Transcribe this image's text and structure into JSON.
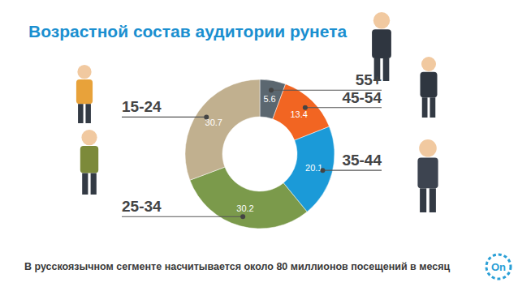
{
  "chart_data": {
    "type": "donut",
    "title": "Возрастной состав аудитории рунета",
    "categories": [
      "55+",
      "45-54",
      "35-44",
      "25-34",
      "15-24"
    ],
    "values": [
      5.6,
      13.4,
      20.1,
      30.2,
      30.7
    ],
    "colors": [
      "#5b6770",
      "#f26522",
      "#1b9ad8",
      "#7b9a4b",
      "#c1b08f"
    ],
    "data_labels": true,
    "footnote": "В русскоязычном сегменте насчитывается около 80 миллионов посещений в месяц",
    "logo": "On"
  }
}
